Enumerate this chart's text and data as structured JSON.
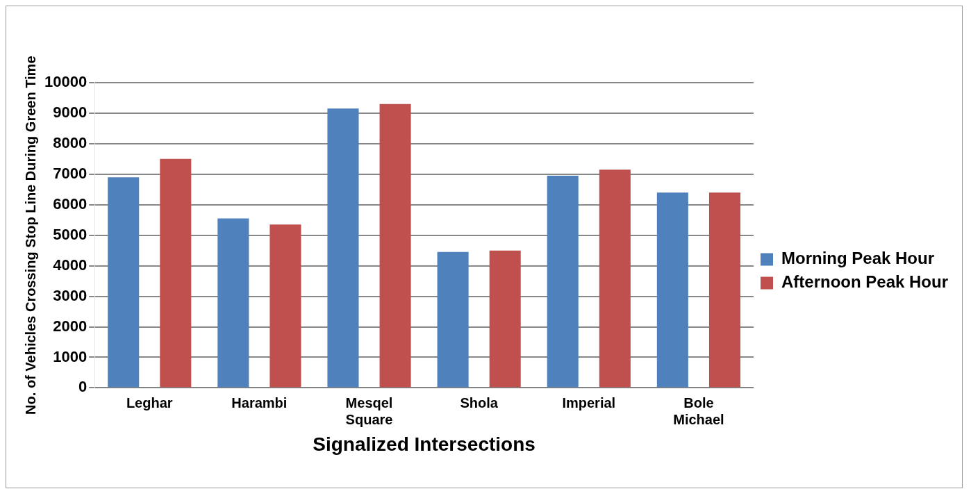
{
  "chart_data": {
    "type": "bar",
    "xlabel": "Signalized Intersections",
    "ylabel": "No. of Vehicles Crossing Stop Line During Green Time",
    "categories": [
      "Leghar",
      "Harambi",
      "Mesqel Square",
      "Shola",
      "Imperial",
      "Bole Michael"
    ],
    "series": [
      {
        "name": "Morning Peak Hour",
        "color": "#4f81bd",
        "values": [
          6900,
          5550,
          9150,
          4450,
          6950,
          6400
        ]
      },
      {
        "name": "Afternoon Peak Hour",
        "color": "#c0504d",
        "values": [
          7500,
          5350,
          9300,
          4500,
          7150,
          6400
        ]
      }
    ],
    "ylim": [
      0,
      10000
    ],
    "yticks": [
      0,
      1000,
      2000,
      3000,
      4000,
      5000,
      6000,
      7000,
      8000,
      9000,
      10000
    ],
    "grid": "y",
    "legend": "right"
  }
}
